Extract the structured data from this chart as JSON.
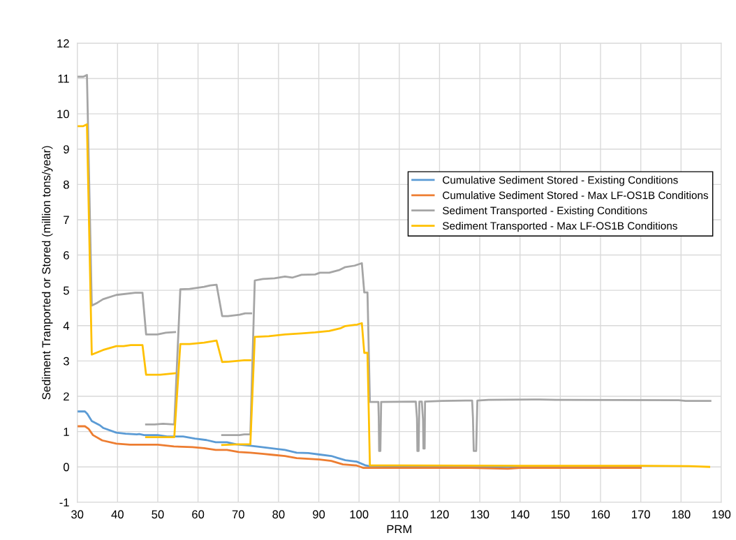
{
  "chart_data": {
    "type": "line",
    "xlabel": "PRM",
    "ylabel": "Sediment Tranported or Stored (million tons/year)",
    "xlim": [
      30,
      190
    ],
    "xticks": [
      30,
      40,
      50,
      60,
      70,
      80,
      90,
      100,
      110,
      120,
      130,
      140,
      150,
      160,
      170,
      180,
      190
    ],
    "ylim": [
      -1,
      12
    ],
    "yticks": [
      -1,
      0,
      1,
      2,
      3,
      4,
      5,
      6,
      7,
      8,
      9,
      10,
      11,
      12
    ],
    "grid": true,
    "legend": "right",
    "marker": "none",
    "line_style": "solid",
    "series": [
      {
        "name": "Cumulative Sediment Stored - Existing Conditions",
        "color": "#5b9bd5",
        "x": [
          30.2,
          31.9,
          32.5,
          33.6,
          35.6,
          36.5,
          39.7,
          42,
          44.8,
          45.4,
          46.6,
          50,
          52.3,
          56.3,
          59.2,
          62.1,
          64.4,
          67.2,
          69.5,
          73,
          75.9,
          78.7,
          81.6,
          84.5,
          87.4,
          90.2,
          93.1,
          94.8,
          96.6,
          99.4,
          101.7,
          102.6,
          110,
          140,
          170
        ],
        "values": [
          1.57,
          1.57,
          1.5,
          1.3,
          1.18,
          1.1,
          0.97,
          0.94,
          0.92,
          0.93,
          0.9,
          0.9,
          0.86,
          0.86,
          0.8,
          0.76,
          0.7,
          0.7,
          0.64,
          0.6,
          0.56,
          0.52,
          0.48,
          0.4,
          0.39,
          0.35,
          0.31,
          0.25,
          0.19,
          0.15,
          0.04,
          0.02,
          0.0,
          0.0,
          0.0
        ]
      },
      {
        "name": "Cumulative Sediment Stored - Max LF-OS1B Conditions",
        "color": "#ed7d31",
        "x": [
          30.2,
          31.9,
          32.8,
          33.9,
          36.2,
          39.7,
          43.1,
          50,
          54,
          58.6,
          61.5,
          64.4,
          67.2,
          70.1,
          73,
          75.9,
          78.7,
          81.6,
          84.5,
          90.2,
          93.1,
          96,
          99.4,
          101.1,
          110,
          127.6,
          137,
          140,
          170
        ],
        "values": [
          1.15,
          1.15,
          1.08,
          0.9,
          0.75,
          0.66,
          0.63,
          0.63,
          0.58,
          0.56,
          0.53,
          0.48,
          0.48,
          0.42,
          0.4,
          0.37,
          0.34,
          0.31,
          0.25,
          0.21,
          0.17,
          0.07,
          0.04,
          -0.03,
          -0.03,
          -0.03,
          -0.05,
          -0.03,
          -0.03
        ]
      },
      {
        "name": "Sediment Transported - Existing Conditions",
        "color": "#a5a5a5",
        "x": [
          30,
          31.5,
          32.4,
          33.6,
          35,
          36.4,
          39.7,
          44.4,
          46.2,
          47.1,
          49.9,
          52,
          54.3
        ],
        "values": [
          11.05,
          11.05,
          11.1,
          4.57,
          4.65,
          4.75,
          4.87,
          4.93,
          4.93,
          3.75,
          3.75,
          3.8,
          3.82
        ]
      },
      {
        "color": "#a5a5a5",
        "x": [
          47.1,
          49.2,
          51.3,
          54.1,
          55.6,
          57.9,
          61.5,
          63,
          64.6,
          66,
          67.4,
          70.3,
          71.7,
          73.2
        ],
        "values": [
          1.2,
          1.2,
          1.22,
          1.2,
          5.03,
          5.04,
          5.1,
          5.14,
          5.16,
          4.27,
          4.27,
          4.31,
          4.35,
          4.35
        ]
      },
      {
        "color": "#a5a5a5",
        "x": [
          66,
          70.3,
          71.5,
          73,
          74.1,
          76.1,
          79,
          81.6,
          83.4,
          85.7,
          89.1,
          90.3,
          92.6,
          95.2,
          96.6,
          98.9,
          100.7,
          101.3,
          102.1,
          102.7,
          104.8,
          104.9,
          105.0,
          105.3,
          105.5,
          114.1,
          114.4,
          114.5,
          114.8,
          115.0,
          115.6,
          115.9,
          116.0,
          116.3,
          116.4,
          120.7,
          126.5,
          128.1,
          128.3,
          128.5,
          129.1,
          129.4,
          132.2,
          144.9,
          148.9,
          179.4,
          181.1,
          187.3
        ],
        "values": [
          0.9,
          0.9,
          0.92,
          0.92,
          5.28,
          5.32,
          5.34,
          5.39,
          5.36,
          5.44,
          5.45,
          5.5,
          5.5,
          5.58,
          5.66,
          5.7,
          5.77,
          4.94,
          4.94,
          1.84,
          1.84,
          1.4,
          0.45,
          0.45,
          1.84,
          1.85,
          1.38,
          0.45,
          0.45,
          1.85,
          1.85,
          1.33,
          0.52,
          0.52,
          1.85,
          1.87,
          1.88,
          1.88,
          1.4,
          0.45,
          0.45,
          1.88,
          1.9,
          1.91,
          1.9,
          1.89,
          1.87,
          1.87
        ]
      },
      {
        "name": "Sediment Transported - Max LF-OS1B Conditions",
        "color": "#ffc000",
        "x": [
          30,
          31.5,
          32.4,
          33.6,
          36.4,
          39.7,
          41.5,
          43.3,
          46.2,
          47.1,
          50.6,
          54.3
        ],
        "values": [
          9.65,
          9.65,
          9.7,
          3.18,
          3.31,
          3.42,
          3.42,
          3.45,
          3.45,
          2.61,
          2.61,
          2.65
        ]
      },
      {
        "color": "#ffc000",
        "x": [
          47.1,
          49.9,
          54.1,
          55.6,
          57.9,
          61.5,
          64.6,
          66,
          67.7,
          71.5,
          73
        ],
        "values": [
          0.84,
          0.84,
          0.84,
          3.48,
          3.48,
          3.52,
          3.58,
          2.97,
          2.98,
          3.02,
          3.02
        ]
      },
      {
        "color": "#ffc000",
        "x": [
          66,
          69.9,
          73,
          74.1,
          77.6,
          81.6,
          85.7,
          89.1,
          92.6,
          95.5,
          96.6,
          99.5,
          100.7,
          101.3,
          102.1,
          102.7,
          110,
          140,
          170,
          182,
          187
        ],
        "values": [
          0.62,
          0.64,
          0.64,
          3.68,
          3.7,
          3.75,
          3.78,
          3.81,
          3.85,
          3.93,
          3.99,
          4.03,
          4.07,
          3.23,
          3.23,
          0.04,
          0.04,
          0.03,
          0.03,
          0.02,
          0.0
        ]
      }
    ]
  }
}
